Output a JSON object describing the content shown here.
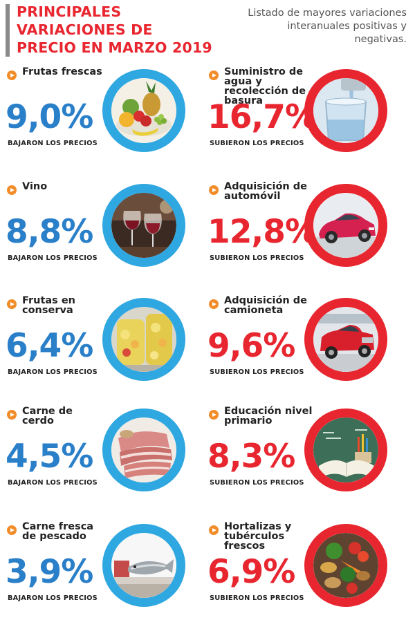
{
  "header": {
    "title": "PRINCIPALES VARIACIONES DE PRECIO EN MARZO 2019",
    "subtitle": "Listado de mayores variaciones interanuales positivas y negativas."
  },
  "decreases": [
    {
      "name": "Frutas frescas",
      "value": "9,0%",
      "caption": "BAJARON LOS PRECIOS",
      "icon": "fresh-fruit-photo"
    },
    {
      "name": "Vino",
      "value": "8,8%",
      "caption": "BAJARON LOS PRECIOS",
      "icon": "wine-photo"
    },
    {
      "name": "Frutas en conserva",
      "value": "6,4%",
      "caption": "BAJARON LOS PRECIOS",
      "icon": "canned-fruit-photo"
    },
    {
      "name": "Carne de cerdo",
      "value": "4,5%",
      "caption": "BAJARON LOS PRECIOS",
      "icon": "pork-photo"
    },
    {
      "name": "Carne fresca de pescado",
      "value": "3,9%",
      "caption": "BAJARON LOS PRECIOS",
      "icon": "fish-photo"
    }
  ],
  "increases": [
    {
      "name": "Suministro de agua y recolección de basura",
      "value": "16,7%",
      "caption": "SUBIERON LOS PRECIOS",
      "icon": "water-photo"
    },
    {
      "name": "Adquisición de automóvil",
      "value": "12,8%",
      "caption": "SUBIERON LOS PRECIOS",
      "icon": "car-photo"
    },
    {
      "name": "Adquisición de camioneta",
      "value": "9,6%",
      "caption": "SUBIERON LOS PRECIOS",
      "icon": "pickup-truck-photo"
    },
    {
      "name": "Educación nivel primario",
      "value": "8,3%",
      "caption": "SUBIERON LOS PRECIOS",
      "icon": "school-books-photo"
    },
    {
      "name": "Hortalizas y tubérculos frescos",
      "value": "6,9%",
      "caption": "SUBIERON LOS PRECIOS",
      "icon": "vegetables-photo"
    }
  ],
  "colors": {
    "title_red": "#e8262f",
    "decrease_blue": "#2a7fc9",
    "ring_blue": "#2fa7e0",
    "increase_red": "#e8262f",
    "bullet_orange": "#f28c28"
  }
}
